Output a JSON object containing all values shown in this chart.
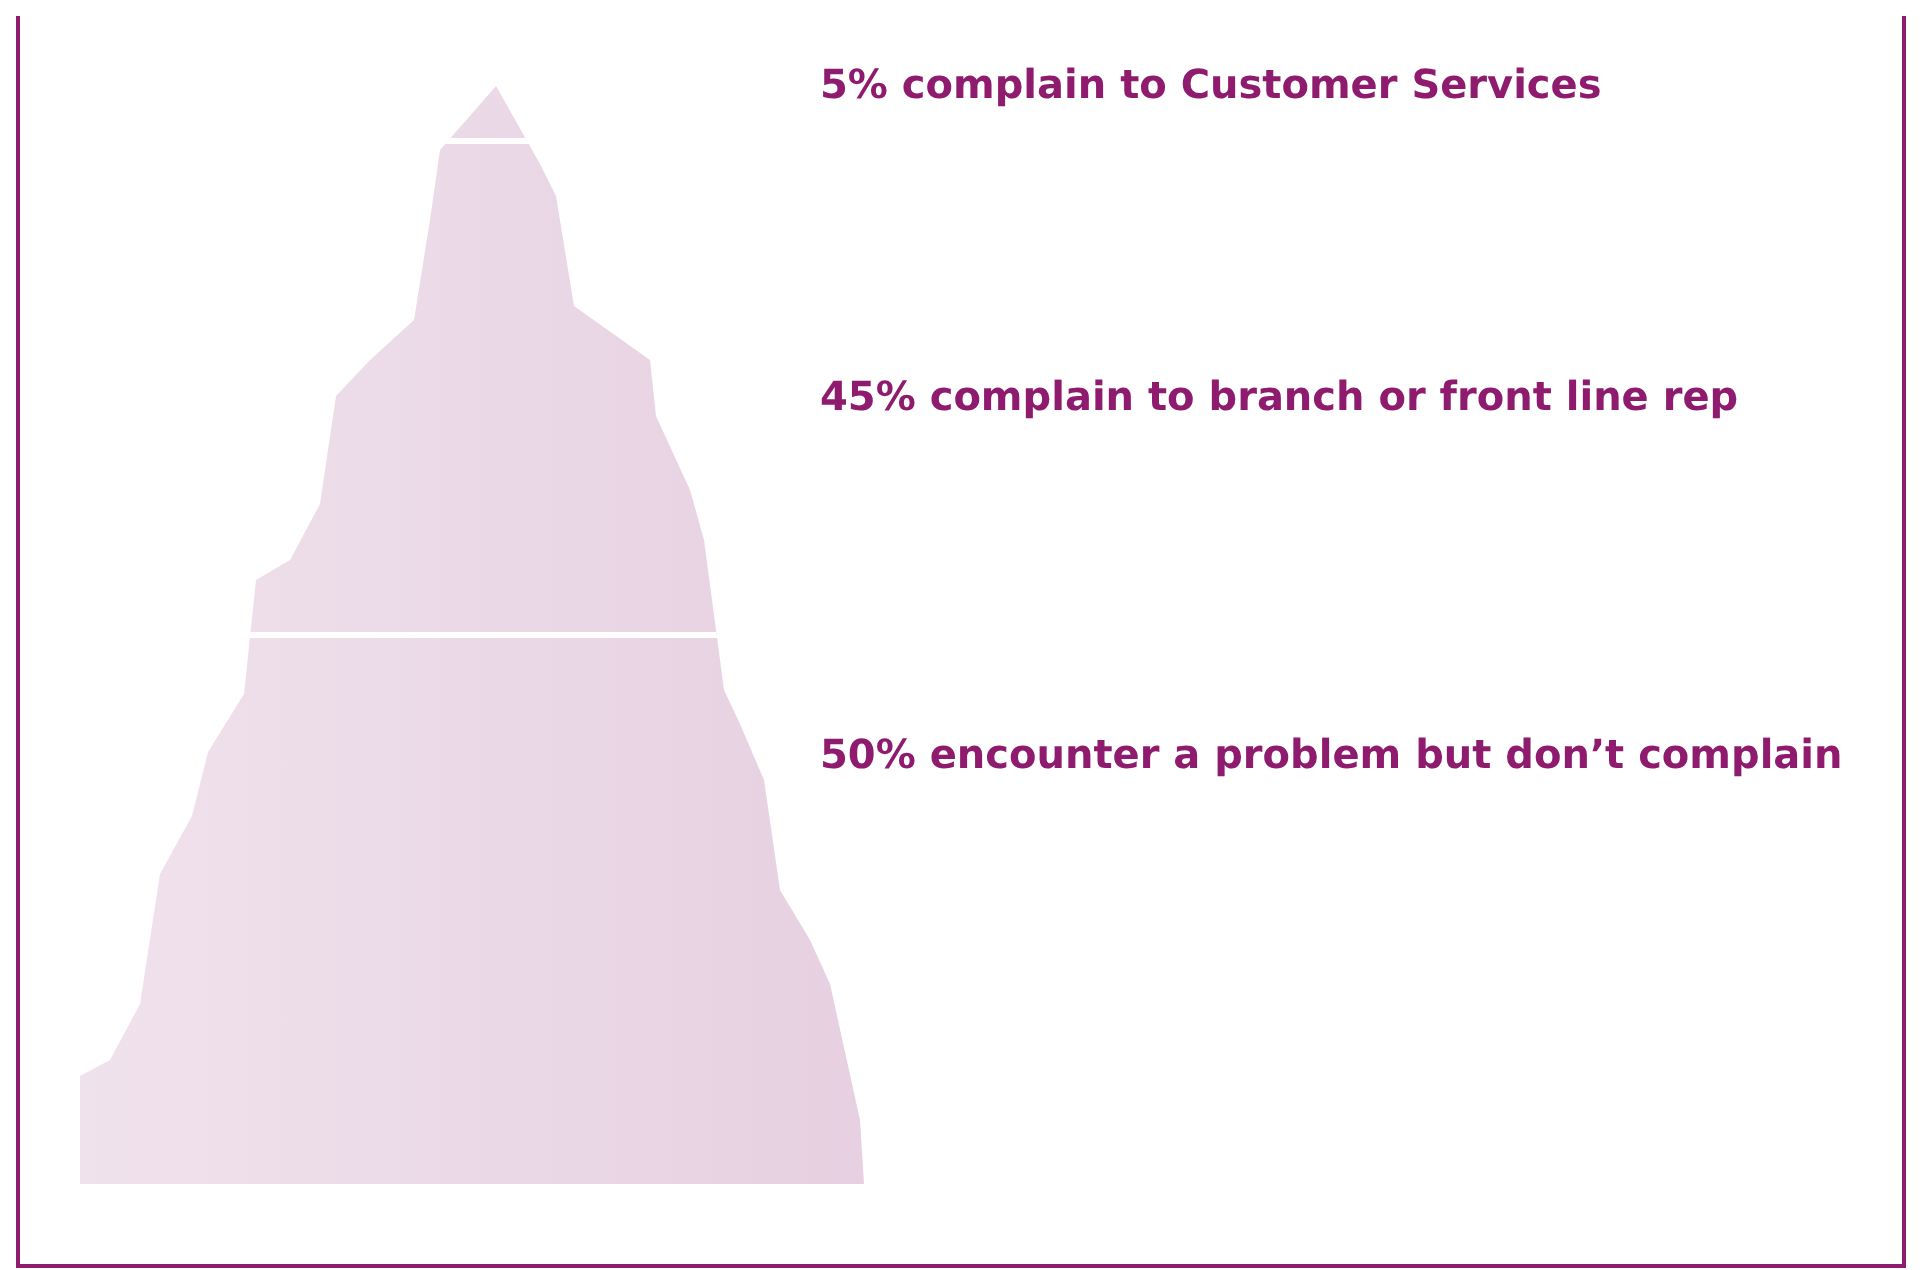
{
  "chart_data": {
    "type": "other",
    "categories": [
      "complain to Customer Services",
      "complain to branch or front line rep",
      "encounter a problem but don’t complain"
    ],
    "values": [
      5,
      45,
      50
    ],
    "value_labels": [
      "5%",
      "45%",
      "50%"
    ]
  }
}
